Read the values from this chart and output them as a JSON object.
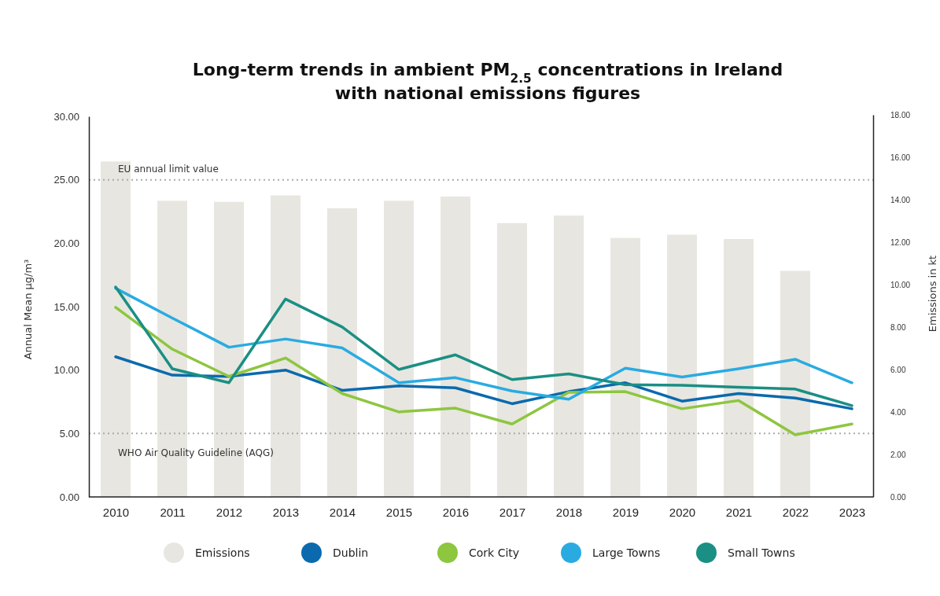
{
  "chart_data": {
    "type": "line",
    "title": "Long-term trends in ambient PM$_{2.5}$ concentrations in Ireland\nwith national emissions figures",
    "ylabel": "Annual Mean µg/m³",
    "y2label": "Emissions in kt",
    "categories": [
      "2010",
      "2011",
      "2012",
      "2013",
      "2014",
      "2015",
      "2016",
      "2017",
      "2018",
      "2019",
      "2020",
      "2021",
      "2022",
      "2023"
    ],
    "series": [
      {
        "name": "Emissions",
        "type": "bar",
        "axis": "y2",
        "color": "#e8e6e0",
        "values": [
          15.8,
          13.95,
          13.9,
          14.2,
          13.6,
          13.95,
          14.15,
          12.9,
          13.25,
          12.2,
          12.35,
          12.15,
          10.65,
          null
        ]
      },
      {
        "name": "Dublin",
        "color": "#0a6aad",
        "values": [
          11.05,
          9.6,
          9.5,
          10.0,
          8.4,
          8.75,
          8.6,
          7.35,
          8.3,
          9.0,
          7.55,
          8.15,
          7.8,
          6.95
        ]
      },
      {
        "name": "Cork City",
        "color": "#8dc63f",
        "values": [
          14.95,
          11.65,
          9.5,
          10.95,
          8.15,
          6.7,
          7.0,
          5.75,
          8.25,
          8.3,
          6.95,
          7.6,
          4.9,
          5.75
        ]
      },
      {
        "name": "Large Towns",
        "color": "#29abe2",
        "values": [
          16.45,
          14.1,
          11.8,
          12.45,
          11.75,
          9.0,
          9.4,
          8.35,
          7.7,
          10.15,
          9.45,
          10.1,
          10.85,
          9.0
        ]
      },
      {
        "name": "Small Towns",
        "color": "#1a8f84",
        "values": [
          16.55,
          10.1,
          9.0,
          15.6,
          13.4,
          10.05,
          11.2,
          9.25,
          9.7,
          8.85,
          8.8,
          8.65,
          8.5,
          7.2
        ]
      }
    ],
    "ylim": [
      0,
      30
    ],
    "yticks": [
      {
        "value": 0,
        "label": "0.00"
      },
      {
        "value": 5,
        "label": "5.00"
      },
      {
        "value": 10,
        "label": "10.00"
      },
      {
        "value": 15,
        "label": "15.00"
      },
      {
        "value": 20,
        "label": "20.00"
      },
      {
        "value": 25,
        "label": "25.00"
      },
      {
        "value": 30,
        "label": "30.00"
      }
    ],
    "y2lim": [
      0,
      18
    ],
    "y2ticks": [
      {
        "value": 0,
        "label": "0.00"
      },
      {
        "value": 2,
        "label": "2.00"
      },
      {
        "value": 4,
        "label": "4.00"
      },
      {
        "value": 6,
        "label": "6.00"
      },
      {
        "value": 8,
        "label": "8.00"
      },
      {
        "value": 10,
        "label": "10.00"
      },
      {
        "value": 12,
        "label": "12.00"
      },
      {
        "value": 14,
        "label": "14.00"
      },
      {
        "value": 16,
        "label": "16.00"
      },
      {
        "value": 18,
        "label": "18.00"
      }
    ],
    "ref_lines": [
      {
        "axis": "y",
        "value": 25,
        "label": "EU annual limit value",
        "color": "#aaaaaa",
        "line_style": "dotted"
      },
      {
        "axis": "y",
        "value": 5,
        "label": "WHO Air Quality Guideline (AQG)",
        "color": "#aaaaaa",
        "line_style": "dotted"
      }
    ],
    "grid": false,
    "legend": "bottom",
    "marker": "none",
    "line_style": "solid"
  }
}
